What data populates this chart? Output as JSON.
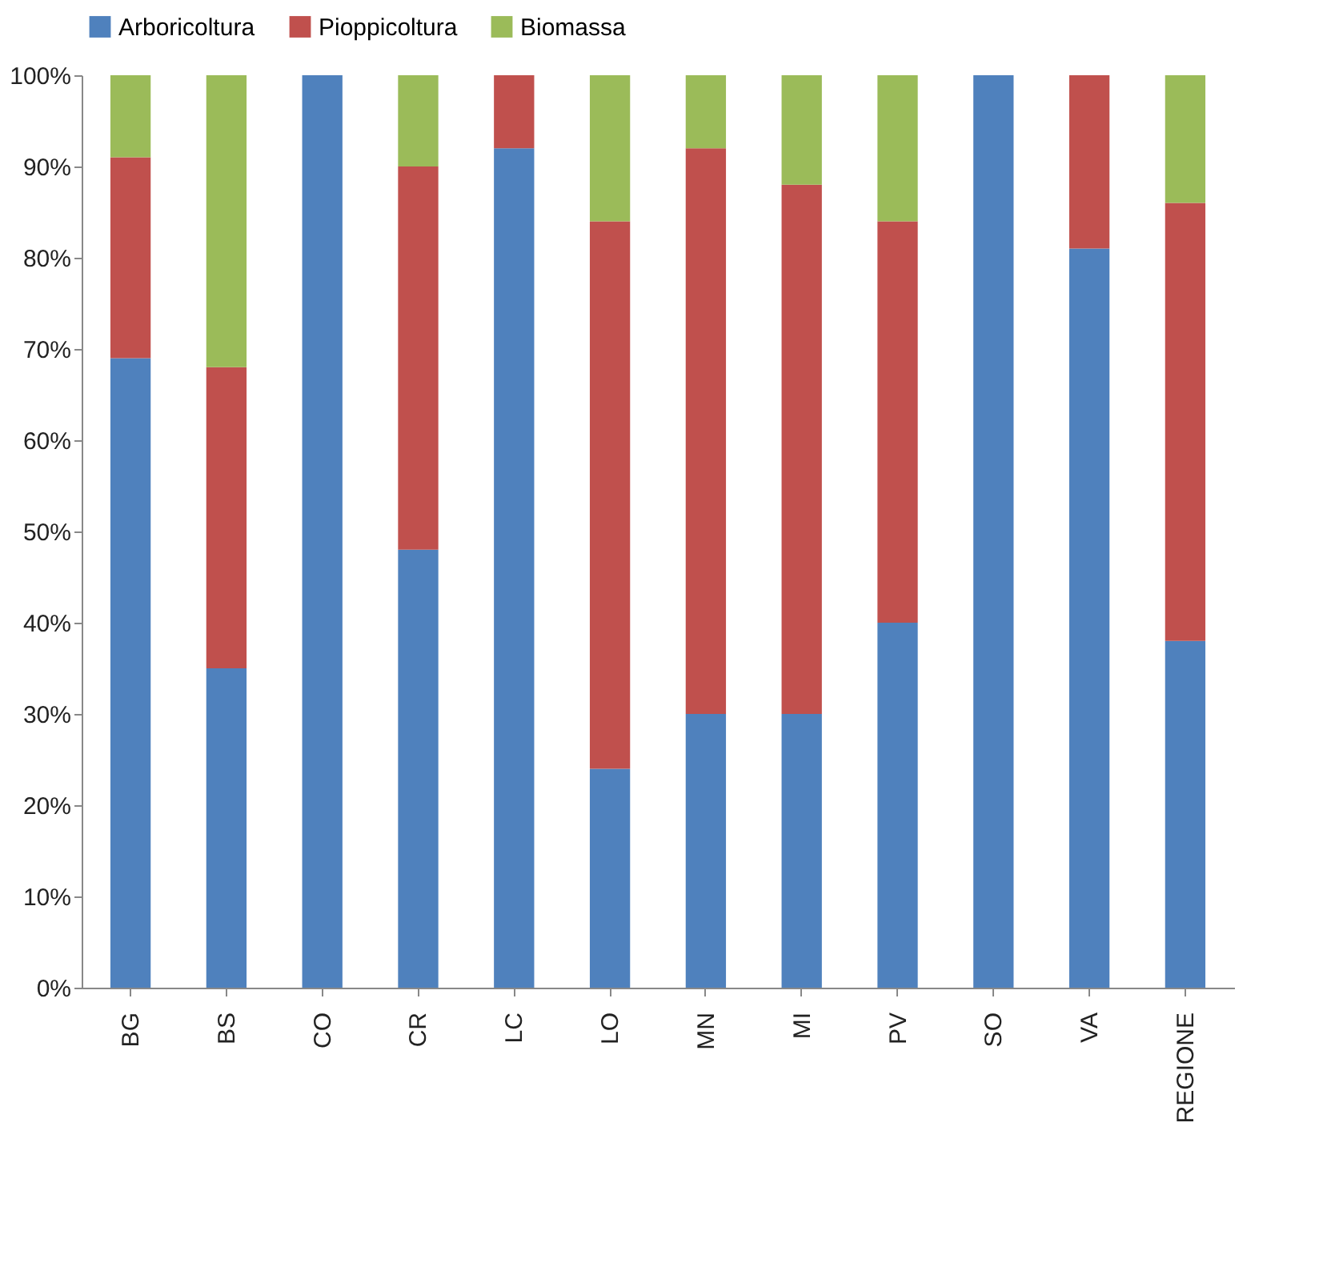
{
  "chart_data": {
    "type": "bar",
    "stacked": true,
    "categories": [
      "BG",
      "BS",
      "CO",
      "CR",
      "LC",
      "LO",
      "MN",
      "MI",
      "PV",
      "SO",
      "VA",
      "REGIONE"
    ],
    "series": [
      {
        "name": "Arboricoltura",
        "color": "#4f81bd",
        "values": [
          69,
          35,
          100,
          48,
          92,
          24,
          30,
          30,
          40,
          100,
          81,
          38
        ]
      },
      {
        "name": "Pioppicoltura",
        "color": "#c0504d",
        "values": [
          22,
          33,
          0,
          42,
          8,
          60,
          62,
          58,
          44,
          0,
          19,
          48
        ]
      },
      {
        "name": "Biomassa",
        "color": "#9bbb59",
        "values": [
          9,
          32,
          0,
          10,
          0,
          16,
          8,
          12,
          16,
          0,
          0,
          14
        ]
      }
    ],
    "ylim": [
      0,
      100
    ],
    "yticks": [
      {
        "value": 0,
        "label": "0%"
      },
      {
        "value": 10,
        "label": "10%"
      },
      {
        "value": 20,
        "label": "20%"
      },
      {
        "value": 30,
        "label": "30%"
      },
      {
        "value": 40,
        "label": "40%"
      },
      {
        "value": 50,
        "label": "50%"
      },
      {
        "value": 60,
        "label": "60%"
      },
      {
        "value": 70,
        "label": "70%"
      },
      {
        "value": 80,
        "label": "80%"
      },
      {
        "value": 90,
        "label": "90%"
      },
      {
        "value": 100,
        "label": "100%"
      }
    ],
    "grid": false,
    "legend": "top"
  }
}
